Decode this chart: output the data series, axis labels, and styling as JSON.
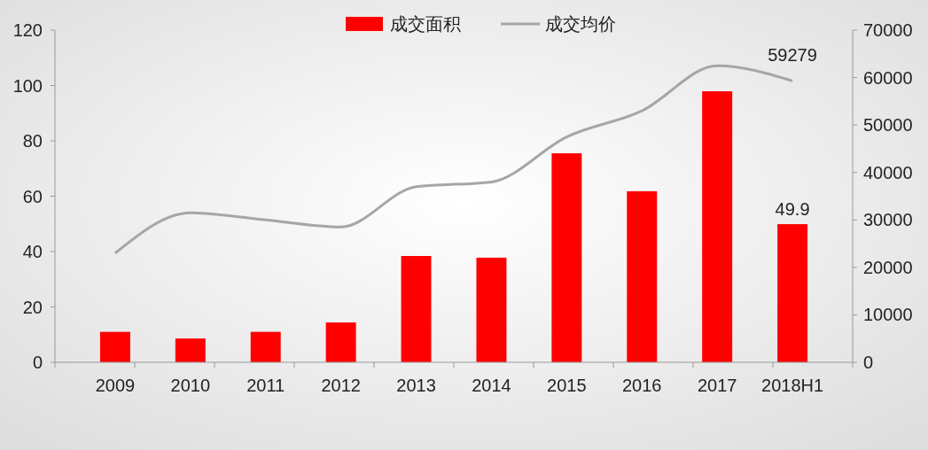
{
  "chart_data": {
    "type": "bar",
    "categories": [
      "2009",
      "2010",
      "2011",
      "2012",
      "2013",
      "2014",
      "2015",
      "2016",
      "2017",
      "2018H1"
    ],
    "series": [
      {
        "name": "成交面积",
        "color": "#ff0000",
        "values": [
          11,
          8.6,
          11,
          14.4,
          38.4,
          37.8,
          75.5,
          61.8,
          97.9,
          49.9
        ],
        "value_labels": [
          null,
          null,
          null,
          null,
          null,
          null,
          null,
          null,
          null,
          "49.9"
        ]
      },
      {
        "name": "成交均价",
        "type": "line",
        "axis": "y2",
        "color": "#a6a6a6",
        "values": [
          23000,
          31500,
          30000,
          28500,
          37000,
          38000,
          47500,
          53000,
          62500,
          59279
        ],
        "value_labels": [
          null,
          null,
          null,
          null,
          null,
          null,
          null,
          null,
          null,
          "59279"
        ]
      }
    ],
    "ylim": [
      0,
      120
    ],
    "yticks": [
      0,
      20,
      40,
      60,
      80,
      100,
      120
    ],
    "y2lim": [
      0,
      70000
    ],
    "y2ticks": [
      0,
      10000,
      20000,
      30000,
      40000,
      50000,
      60000,
      70000
    ],
    "grid": false,
    "legend": "top"
  }
}
